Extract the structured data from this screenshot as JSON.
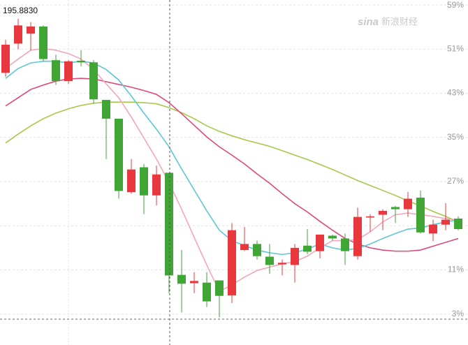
{
  "chart_data": {
    "type": "candlestick",
    "annotation": "195.8830",
    "watermark_logo": "sina",
    "watermark_text": "新浪财经",
    "ylim": [
      -2.6,
      59.9
    ],
    "yticks": [
      {
        "value": 59,
        "label": "59%"
      },
      {
        "value": 51,
        "label": "51%"
      },
      {
        "value": 43,
        "label": "43%"
      },
      {
        "value": 35,
        "label": "35%"
      },
      {
        "value": 27,
        "label": "27%"
      },
      {
        "value": 19,
        "label": null
      },
      {
        "value": 11,
        "label": "11%"
      },
      {
        "value": 3,
        "label": "3%"
      }
    ],
    "grid": true,
    "up_color": "#e8373d",
    "down_color": "#3fa535",
    "open": [
      46.7,
      52.0,
      53.8,
      55.1,
      49.0,
      45.2,
      48.9,
      48.6,
      41.8,
      38.4,
      25.1,
      29.6,
      24.5,
      28.6,
      10.1,
      8.6,
      8.7,
      9.1,
      6.4,
      14.6,
      15.7,
      13.4,
      12.0,
      11.9,
      15.4,
      14.4,
      17.2,
      16.7,
      13.5,
      20.5,
      21.0,
      22.4,
      22.0,
      24.1,
      17.6,
      19.2,
      20.3
    ],
    "high": [
      52.7,
      56.5,
      55.9,
      55.3,
      50.0,
      49.0,
      50.8,
      49.0,
      41.8,
      38.4,
      31.1,
      30.2,
      29.9,
      28.6,
      14.6,
      10.6,
      10.6,
      9.1,
      19.5,
      18.8,
      16.3,
      15.7,
      12.9,
      15.7,
      18.4,
      17.4,
      17.4,
      17.6,
      22.3,
      21.1,
      22.0,
      22.6,
      25.1,
      25.4,
      20.1,
      23.1,
      20.7
    ],
    "low": [
      46.0,
      51.0,
      50.8,
      48.8,
      44.5,
      44.7,
      47.9,
      41.2,
      31.1,
      23.9,
      24.8,
      21.1,
      22.7,
      6.8,
      3.3,
      6.8,
      4.3,
      2.4,
      5.0,
      14.4,
      12.9,
      10.3,
      10.0,
      8.7,
      13.8,
      13.1,
      16.3,
      11.9,
      12.9,
      17.9,
      18.2,
      19.5,
      20.6,
      17.6,
      16.2,
      18.2,
      18.2
    ],
    "close": [
      51.8,
      55.3,
      55.1,
      49.2,
      45.2,
      48.8,
      48.6,
      41.9,
      38.4,
      25.3,
      29.2,
      24.5,
      28.3,
      10.0,
      8.5,
      9.0,
      5.3,
      6.3,
      18.2,
      15.7,
      13.5,
      11.9,
      12.3,
      15.0,
      14.3,
      17.4,
      16.7,
      14.4,
      20.6,
      20.7,
      21.7,
      22.0,
      23.9,
      17.8,
      19.2,
      20.1,
      18.4
    ],
    "series": [
      {
        "color": "#a6c94a",
        "values": [
          34.0,
          35.6,
          37.1,
          38.4,
          39.4,
          40.2,
          40.8,
          41.2,
          41.4,
          41.4,
          41.4,
          41.3,
          41.1,
          40.4,
          39.5,
          38.4,
          37.1,
          36.1,
          35.3,
          34.6,
          34.0,
          33.4,
          32.6,
          31.8,
          31.0,
          30.1,
          29.2,
          28.2,
          27.2,
          26.3,
          25.4,
          24.5,
          23.5,
          22.6,
          21.6,
          20.7,
          19.7
        ]
      },
      {
        "color": "#e0487a",
        "values": [
          40.7,
          42.2,
          43.7,
          44.5,
          45.2,
          45.6,
          45.7,
          45.6,
          45.1,
          44.6,
          44.1,
          43.5,
          42.8,
          41.3,
          39.3,
          37.2,
          35.1,
          33.3,
          31.8,
          30.2,
          28.4,
          26.7,
          24.8,
          23.0,
          21.5,
          19.8,
          18.2,
          16.7,
          15.7,
          15.0,
          14.6,
          14.4,
          14.4,
          14.6,
          15.3,
          16.0,
          16.7
        ]
      },
      {
        "color": "#5bc8d8",
        "values": [
          45.7,
          47.5,
          48.5,
          48.8,
          48.8,
          48.5,
          48.8,
          48.5,
          47.3,
          45.4,
          42.5,
          39.4,
          36.5,
          33.3,
          29.3,
          25.5,
          21.7,
          18.2,
          16.3,
          15.4,
          14.6,
          14.1,
          13.8,
          14.1,
          14.8,
          15.7,
          15.0,
          14.6,
          14.9,
          15.7,
          16.7,
          17.6,
          18.4,
          18.6,
          19.2,
          19.7,
          20.1
        ]
      },
      {
        "color": "#f2a7b8",
        "values": [
          47.5,
          49.2,
          50.8,
          51.1,
          50.8,
          50.2,
          49.2,
          47.3,
          44.7,
          42.2,
          38.7,
          34.9,
          31.1,
          26.8,
          22.0,
          16.9,
          11.9,
          7.1,
          8.3,
          9.7,
          10.9,
          11.5,
          12.1,
          12.5,
          13.5,
          15.0,
          16.3,
          16.3,
          16.5,
          17.9,
          19.7,
          21.0,
          21.3,
          21.0,
          20.7,
          20.3,
          20.0
        ]
      }
    ]
  }
}
